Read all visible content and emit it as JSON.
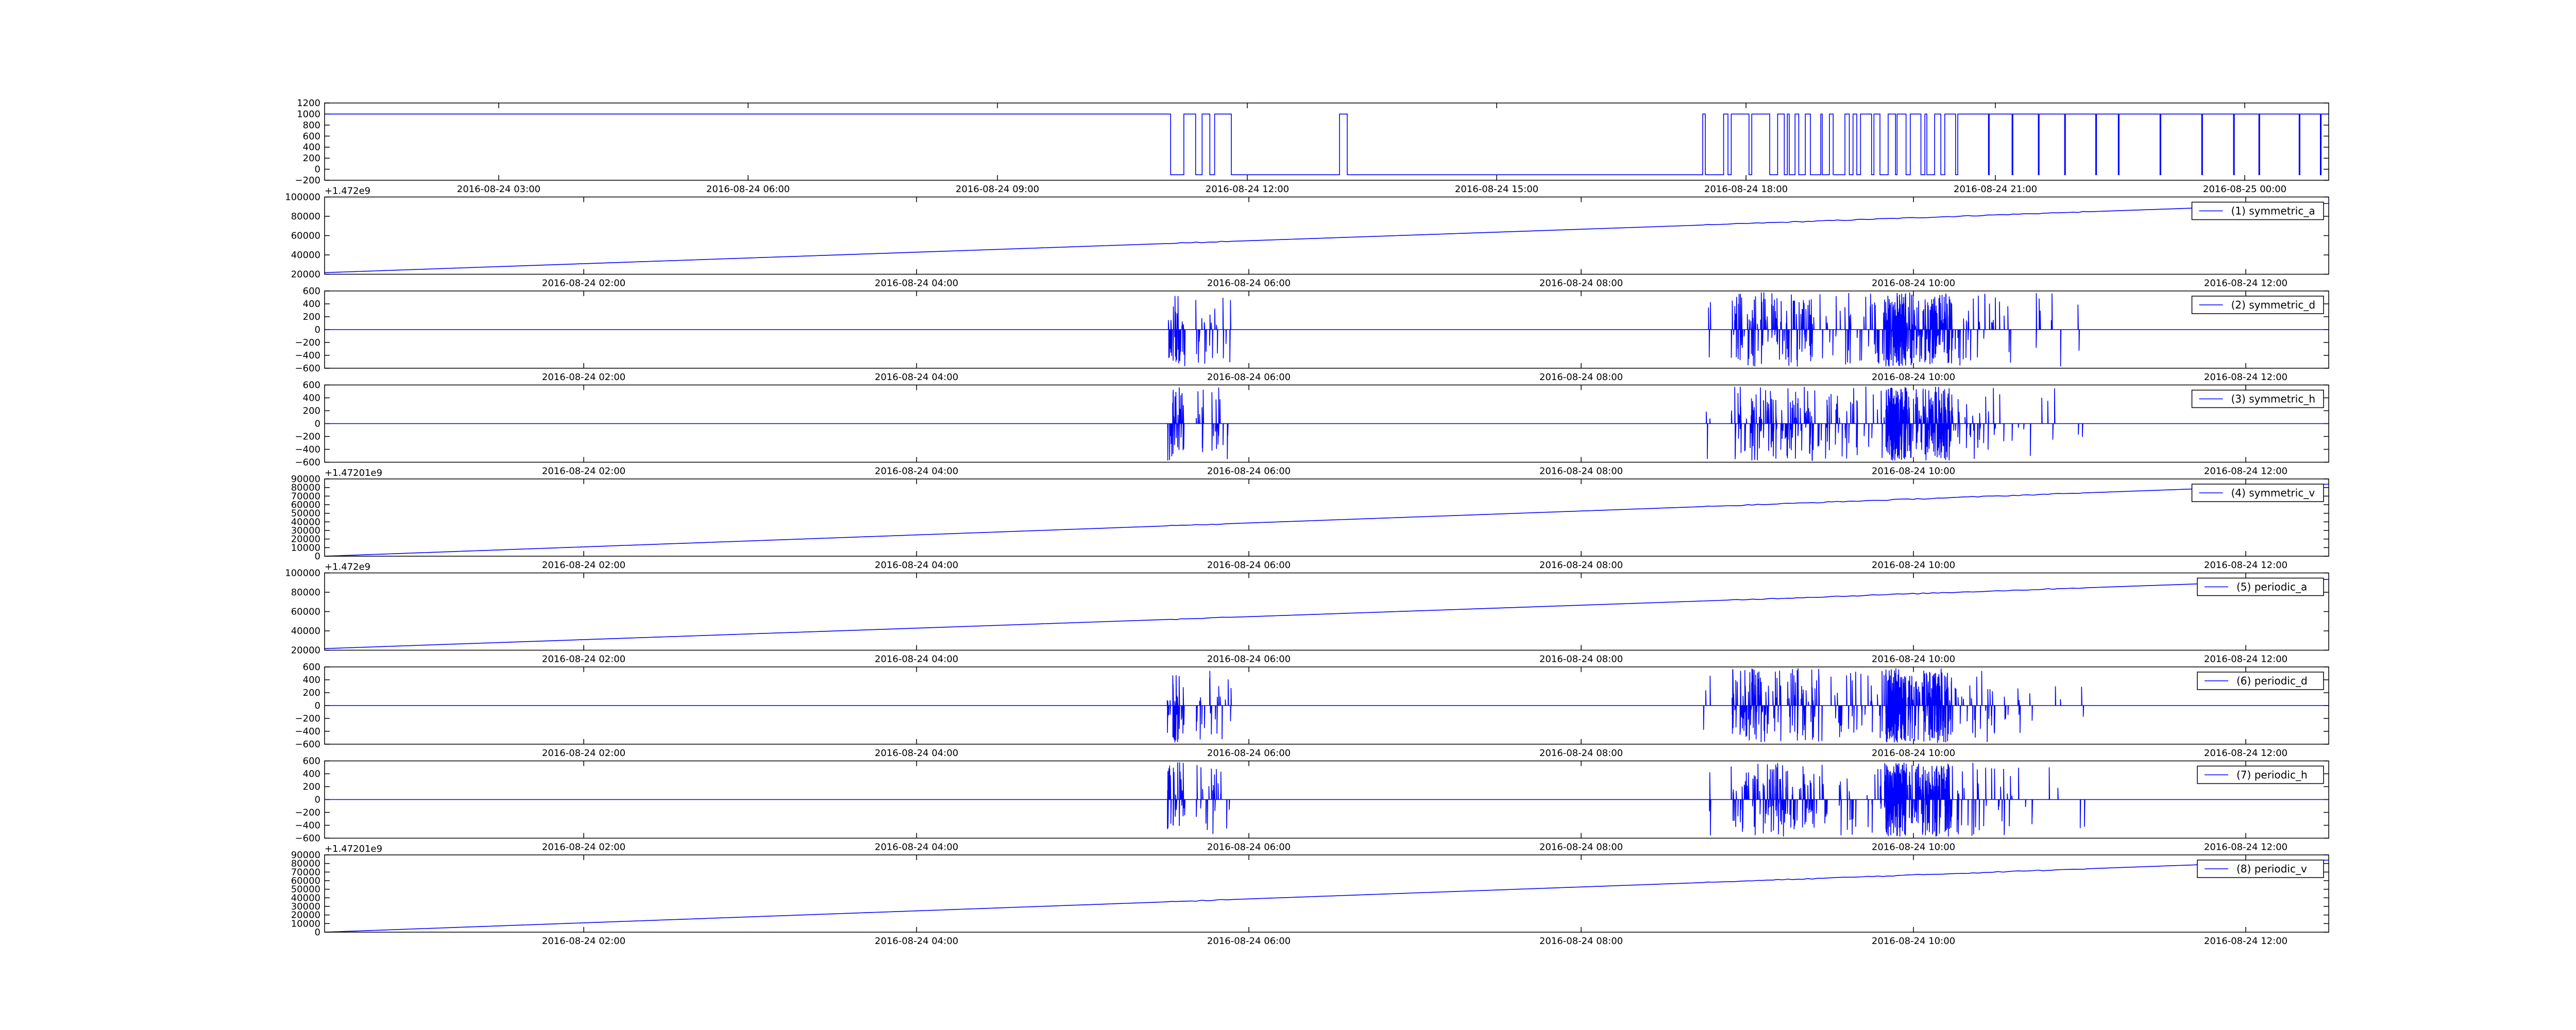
{
  "figure": {
    "line_color": "#0000ff",
    "background": "#ffffff",
    "frame_color": "#000000"
  },
  "chart_data": [
    {
      "type": "line",
      "title": "",
      "xlabel": "",
      "ylabel": "",
      "ylim": [
        -200,
        1200
      ],
      "yticks": [
        "1200",
        "1000",
        "800",
        "600",
        "400",
        "200",
        "0",
        "−200"
      ],
      "xticks": [
        "2016-08-24 03:00",
        "2016-08-24 06:00",
        "2016-08-24 09:00",
        "2016-08-24 12:00",
        "2016-08-24 15:00",
        "2016-08-24 18:00",
        "2016-08-24 21:00",
        "2016-08-25 00:00"
      ],
      "offset_text": "",
      "legend": "",
      "grid": false,
      "signal": "binary"
    },
    {
      "type": "line",
      "title": "",
      "xlabel": "",
      "ylabel": "",
      "ylim": [
        12000,
        108000
      ],
      "yticks": [
        "100000",
        "80000",
        "60000",
        "40000",
        "20000"
      ],
      "xticks": [
        "2016-08-24 02:00",
        "2016-08-24 04:00",
        "2016-08-24 06:00",
        "2016-08-24 08:00",
        "2016-08-24 10:00",
        "2016-08-24 12:00"
      ],
      "offset_text": "+1.472e9",
      "legend": "(1) symmetric_a",
      "legend_position": "top-right",
      "grid": false,
      "signal": "ramp",
      "y_start": 14000,
      "y_end": 100000
    },
    {
      "type": "line",
      "title": "",
      "xlabel": "",
      "ylabel": "",
      "ylim": [
        -600,
        600
      ],
      "yticks": [
        "600",
        "400",
        "200",
        "0",
        "−200",
        "−400",
        "−600"
      ],
      "xticks": [
        "2016-08-24 02:00",
        "2016-08-24 04:00",
        "2016-08-24 06:00",
        "2016-08-24 08:00",
        "2016-08-24 10:00",
        "2016-08-24 12:00"
      ],
      "offset_text": "",
      "legend": "(2) symmetric_d",
      "legend_position": "top-right",
      "grid": false,
      "signal": "spikes"
    },
    {
      "type": "line",
      "title": "",
      "xlabel": "",
      "ylabel": "",
      "ylim": [
        -600,
        600
      ],
      "yticks": [
        "600",
        "400",
        "200",
        "0",
        "−200",
        "−400",
        "−600"
      ],
      "xticks": [
        "2016-08-24 02:00",
        "2016-08-24 04:00",
        "2016-08-24 06:00",
        "2016-08-24 08:00",
        "2016-08-24 10:00",
        "2016-08-24 12:00"
      ],
      "offset_text": "",
      "legend": "(3) symmetric_h",
      "legend_position": "top-right",
      "grid": false,
      "signal": "spikes"
    },
    {
      "type": "line",
      "title": "",
      "xlabel": "",
      "ylabel": "",
      "ylim": [
        0,
        90000
      ],
      "yticks": [
        "90000",
        "80000",
        "70000",
        "60000",
        "50000",
        "40000",
        "30000",
        "20000",
        "10000",
        "0"
      ],
      "xticks": [
        "2016-08-24 02:00",
        "2016-08-24 04:00",
        "2016-08-24 06:00",
        "2016-08-24 08:00",
        "2016-08-24 10:00",
        "2016-08-24 12:00"
      ],
      "offset_text": "+1.47201e9",
      "legend": "(4) symmetric_v",
      "legend_position": "top-right",
      "grid": false,
      "signal": "ramp",
      "y_start": 0,
      "y_end": 84000
    },
    {
      "type": "line",
      "title": "",
      "xlabel": "",
      "ylabel": "",
      "ylim": [
        12000,
        108000
      ],
      "yticks": [
        "100000",
        "80000",
        "60000",
        "40000",
        "20000"
      ],
      "xticks": [
        "2016-08-24 02:00",
        "2016-08-24 04:00",
        "2016-08-24 06:00",
        "2016-08-24 08:00",
        "2016-08-24 10:00",
        "2016-08-24 12:00"
      ],
      "offset_text": "+1.472e9",
      "legend": "(5) periodic_a",
      "legend_position": "top-right",
      "grid": false,
      "signal": "ramp",
      "y_start": 14000,
      "y_end": 100000
    },
    {
      "type": "line",
      "title": "",
      "xlabel": "",
      "ylabel": "",
      "ylim": [
        -600,
        600
      ],
      "yticks": [
        "600",
        "400",
        "200",
        "0",
        "−200",
        "−400",
        "−600"
      ],
      "xticks": [
        "2016-08-24 02:00",
        "2016-08-24 04:00",
        "2016-08-24 06:00",
        "2016-08-24 08:00",
        "2016-08-24 10:00",
        "2016-08-24 12:00"
      ],
      "offset_text": "",
      "legend": "(6) periodic_d",
      "legend_position": "top-right",
      "grid": false,
      "signal": "spikes"
    },
    {
      "type": "line",
      "title": "",
      "xlabel": "",
      "ylabel": "",
      "ylim": [
        -600,
        600
      ],
      "yticks": [
        "600",
        "400",
        "200",
        "0",
        "−200",
        "−400",
        "−600"
      ],
      "xticks": [
        "2016-08-24 02:00",
        "2016-08-24 04:00",
        "2016-08-24 06:00",
        "2016-08-24 08:00",
        "2016-08-24 10:00",
        "2016-08-24 12:00"
      ],
      "offset_text": "",
      "legend": "(7) periodic_h",
      "legend_position": "top-right",
      "grid": false,
      "signal": "spikes"
    },
    {
      "type": "line",
      "title": "",
      "xlabel": "",
      "ylabel": "",
      "ylim": [
        0,
        90000
      ],
      "yticks": [
        "90000",
        "80000",
        "70000",
        "60000",
        "50000",
        "40000",
        "30000",
        "20000",
        "10000",
        "0"
      ],
      "xticks": [
        "2016-08-24 02:00",
        "2016-08-24 04:00",
        "2016-08-24 06:00",
        "2016-08-24 08:00",
        "2016-08-24 10:00",
        "2016-08-24 12:00"
      ],
      "offset_text": "+1.47201e9",
      "legend": "(8) periodic_v",
      "legend_position": "top-right",
      "grid": false,
      "signal": "ramp",
      "y_start": 0,
      "y_end": 84000
    }
  ]
}
